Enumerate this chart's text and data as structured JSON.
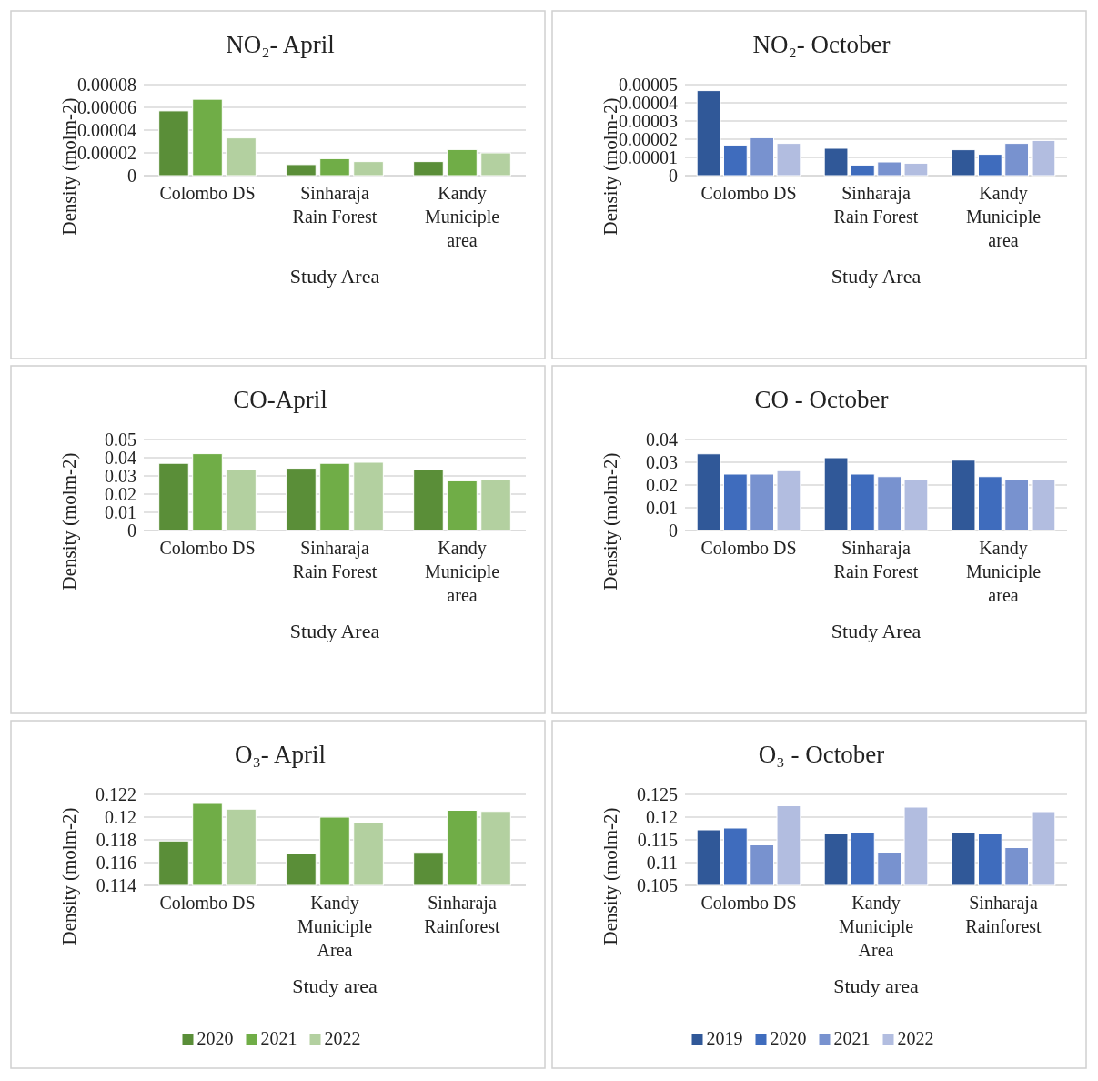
{
  "chart_data": [
    {
      "type": "bar",
      "title": "NO₂- April",
      "xlabel": "Study Area",
      "ylabel": "Density (molm-2)",
      "categories": [
        "Colombo DS",
        "Sinharaja Rain Forest",
        "Kandy Municiple area"
      ],
      "ylim": [
        0,
        8e-05
      ],
      "yticks": [
        {
          "value": 0,
          "label": "0"
        },
        {
          "value": 2e-05,
          "label": "0.00002"
        },
        {
          "value": 4e-05,
          "label": "0.00004"
        },
        {
          "value": 6e-05,
          "label": "0.00006"
        },
        {
          "value": 8e-05,
          "label": "0.00008"
        }
      ],
      "grid": "y",
      "legend": false,
      "series": [
        {
          "color": "#5a8e38",
          "values": [
            5.69e-05,
            9.7e-06,
            1.23e-05
          ]
        },
        {
          "color": "#70ad47",
          "values": [
            6.71e-05,
            1.49e-05,
            2.29e-05
          ]
        },
        {
          "color": "#b3d0a0",
          "values": [
            3.31e-05,
            1.23e-05,
            2e-05
          ]
        }
      ]
    },
    {
      "type": "bar",
      "title": "NO₂- October",
      "xlabel": "Study Area",
      "ylabel": "Density (molm-2)",
      "categories": [
        "Colombo DS",
        "Sinharaja Rain Forest",
        "Kandy Municiple area"
      ],
      "ylim": [
        0,
        5e-05
      ],
      "yticks": [
        {
          "value": 0,
          "label": "0"
        },
        {
          "value": 1e-05,
          "label": "0.00001"
        },
        {
          "value": 2e-05,
          "label": "0.00002"
        },
        {
          "value": 3e-05,
          "label": "0.00003"
        },
        {
          "value": 4e-05,
          "label": "0.00004"
        },
        {
          "value": 5e-05,
          "label": "0.00005"
        }
      ],
      "grid": "y",
      "legend": false,
      "series": [
        {
          "color": "#305898",
          "values": [
            4.67e-05,
            1.5e-05,
            1.42e-05
          ]
        },
        {
          "color": "#3f6cbd",
          "values": [
            1.66e-05,
            5.8e-06,
            1.17e-05
          ]
        },
        {
          "color": "#7892cf",
          "values": [
            2.08e-05,
            7.5e-06,
            1.77e-05
          ]
        },
        {
          "color": "#b2bde0",
          "values": [
            1.77e-05,
            6.8e-06,
            1.93e-05
          ]
        }
      ]
    },
    {
      "type": "bar",
      "title": "CO-April",
      "xlabel": "Study Area",
      "ylabel": "Density (molm-2)",
      "categories": [
        "Colombo DS",
        "Sinharaja Rain Forest",
        "Kandy Municiple area"
      ],
      "ylim": [
        0,
        0.05
      ],
      "yticks": [
        0,
        0.01,
        0.02,
        0.03,
        0.04,
        0.05
      ],
      "grid": "y",
      "legend": false,
      "series": [
        {
          "color": "#5a8e38",
          "values": [
            0.0369,
            0.0342,
            0.0334
          ]
        },
        {
          "color": "#70ad47",
          "values": [
            0.0422,
            0.0369,
            0.0273
          ]
        },
        {
          "color": "#b3d0a0",
          "values": [
            0.0334,
            0.0375,
            0.0279
          ]
        }
      ]
    },
    {
      "type": "bar",
      "title": "CO - October",
      "xlabel": "Study Area",
      "ylabel": "Density (molm-2)",
      "categories": [
        "Colombo DS",
        "Sinharaja Rain Forest",
        "Kandy Municiple area"
      ],
      "ylim": [
        0,
        0.04
      ],
      "yticks": [
        0,
        0.01,
        0.02,
        0.03,
        0.04
      ],
      "grid": "y",
      "legend": false,
      "series": [
        {
          "color": "#305898",
          "values": [
            0.0337,
            0.032,
            0.0309
          ]
        },
        {
          "color": "#3f6cbd",
          "values": [
            0.0248,
            0.0248,
            0.0237
          ]
        },
        {
          "color": "#7892cf",
          "values": [
            0.0248,
            0.0237,
            0.0224
          ]
        },
        {
          "color": "#b2bde0",
          "values": [
            0.0263,
            0.0224,
            0.0224
          ]
        }
      ]
    },
    {
      "type": "bar",
      "title": "O₃- April",
      "xlabel": "Study area",
      "ylabel": "Density (molm-2)",
      "categories": [
        "Colombo DS",
        "Kandy Municiple Area",
        "Sinharaja Rainforest"
      ],
      "ylim": [
        0.114,
        0.122
      ],
      "yticks": [
        0.114,
        0.116,
        0.118,
        0.12,
        0.122
      ],
      "grid": "y",
      "legend": "bottom",
      "series": [
        {
          "name": "2020",
          "color": "#5a8e38",
          "values": [
            0.1179,
            0.1168,
            0.1169
          ]
        },
        {
          "name": "2021",
          "color": "#70ad47",
          "values": [
            0.1212,
            0.12,
            0.1206
          ]
        },
        {
          "name": "2022",
          "color": "#b3d0a0",
          "values": [
            0.1207,
            0.1195,
            0.1205
          ]
        }
      ]
    },
    {
      "type": "bar",
      "title": "O₃ - October",
      "xlabel": "Study area",
      "ylabel": "Density (molm-2)",
      "categories": [
        "Colombo DS",
        "Kandy Municiple Area",
        "Sinharaja Rainforest"
      ],
      "ylim": [
        0.105,
        0.125
      ],
      "yticks": [
        0.105,
        0.11,
        0.115,
        0.12,
        0.125
      ],
      "grid": "y",
      "legend": "bottom",
      "series": [
        {
          "name": "2019",
          "color": "#305898",
          "values": [
            0.1172,
            0.1163,
            0.1166
          ]
        },
        {
          "name": "2020",
          "color": "#3f6cbd",
          "values": [
            0.1176,
            0.1166,
            0.1163
          ]
        },
        {
          "name": "2021",
          "color": "#7892cf",
          "values": [
            0.1139,
            0.1123,
            0.1133
          ]
        },
        {
          "name": "2022",
          "color": "#b2bde0",
          "values": [
            0.1225,
            0.1222,
            0.1212
          ]
        }
      ]
    }
  ]
}
